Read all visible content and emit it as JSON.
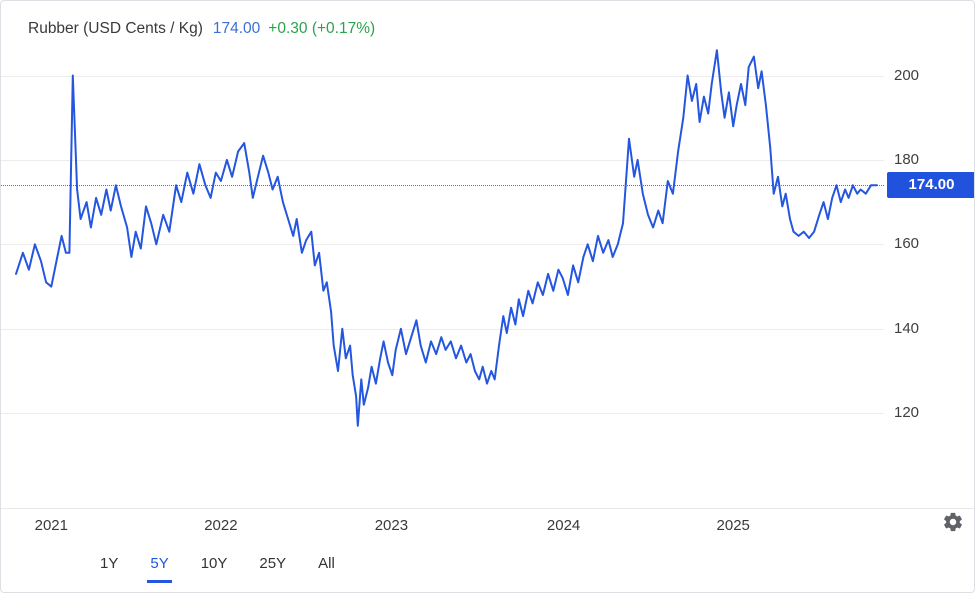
{
  "header": {
    "title": "Rubber (USD Cents / Kg)",
    "price": "174.00",
    "change": "+0.30 (+0.17%)"
  },
  "colors": {
    "accent": "#2456df",
    "badge_bg": "#2152dd",
    "price_text": "#3b6fd6",
    "change_text": "#2ba24c",
    "grid": "#ececec"
  },
  "current_price": {
    "value": 174.0,
    "label": "174.00"
  },
  "toolbar": {
    "ranges": [
      {
        "label": "1Y",
        "active": false
      },
      {
        "label": "5Y",
        "active": true
      },
      {
        "label": "10Y",
        "active": false
      },
      {
        "label": "25Y",
        "active": false
      },
      {
        "label": "All",
        "active": false
      }
    ]
  },
  "icons": {
    "settings": "gear-icon"
  },
  "chart_data": {
    "type": "line",
    "title": "Rubber (USD Cents / Kg)",
    "xlabel": "",
    "ylabel": "USD Cents / Kg",
    "ylim": [
      98,
      207
    ],
    "yticks": [
      200,
      180,
      160,
      140,
      120
    ],
    "xticks": [
      {
        "label": "2021",
        "f": 0.041
      },
      {
        "label": "2022",
        "f": 0.238
      },
      {
        "label": "2023",
        "f": 0.436
      },
      {
        "label": "2024",
        "f": 0.636
      },
      {
        "label": "2025",
        "f": 0.833
      }
    ],
    "grid": "horizontal",
    "legend": false,
    "last_value": 174.0,
    "change": "+0.30",
    "change_percent": "+0.17%",
    "series": [
      {
        "name": "Rubber",
        "points": [
          [
            0.0,
            153
          ],
          [
            0.008,
            158
          ],
          [
            0.015,
            154
          ],
          [
            0.022,
            160
          ],
          [
            0.029,
            156
          ],
          [
            0.035,
            151
          ],
          [
            0.041,
            150
          ],
          [
            0.048,
            157
          ],
          [
            0.053,
            162
          ],
          [
            0.058,
            158
          ],
          [
            0.062,
            158
          ],
          [
            0.066,
            200
          ],
          [
            0.071,
            173
          ],
          [
            0.075,
            166
          ],
          [
            0.082,
            170
          ],
          [
            0.087,
            164
          ],
          [
            0.093,
            171
          ],
          [
            0.099,
            167
          ],
          [
            0.105,
            173
          ],
          [
            0.11,
            168
          ],
          [
            0.116,
            174
          ],
          [
            0.122,
            169
          ],
          [
            0.129,
            164
          ],
          [
            0.134,
            157
          ],
          [
            0.139,
            163
          ],
          [
            0.145,
            159
          ],
          [
            0.151,
            169
          ],
          [
            0.157,
            165
          ],
          [
            0.163,
            160
          ],
          [
            0.171,
            167
          ],
          [
            0.178,
            163
          ],
          [
            0.186,
            174
          ],
          [
            0.192,
            170
          ],
          [
            0.199,
            177
          ],
          [
            0.206,
            172
          ],
          [
            0.213,
            179
          ],
          [
            0.22,
            174
          ],
          [
            0.226,
            171
          ],
          [
            0.232,
            177
          ],
          [
            0.238,
            175
          ],
          [
            0.245,
            180
          ],
          [
            0.251,
            176
          ],
          [
            0.258,
            182
          ],
          [
            0.265,
            184
          ],
          [
            0.271,
            177
          ],
          [
            0.275,
            171
          ],
          [
            0.281,
            176
          ],
          [
            0.287,
            181
          ],
          [
            0.293,
            177
          ],
          [
            0.298,
            173
          ],
          [
            0.304,
            176
          ],
          [
            0.31,
            170
          ],
          [
            0.316,
            166
          ],
          [
            0.322,
            162
          ],
          [
            0.326,
            166
          ],
          [
            0.332,
            158
          ],
          [
            0.337,
            161
          ],
          [
            0.343,
            163
          ],
          [
            0.347,
            155
          ],
          [
            0.352,
            158
          ],
          [
            0.357,
            149
          ],
          [
            0.361,
            151
          ],
          [
            0.366,
            144
          ],
          [
            0.369,
            136
          ],
          [
            0.374,
            130
          ],
          [
            0.379,
            140
          ],
          [
            0.383,
            133
          ],
          [
            0.388,
            136
          ],
          [
            0.391,
            129
          ],
          [
            0.395,
            124
          ],
          [
            0.397,
            117
          ],
          [
            0.401,
            128
          ],
          [
            0.404,
            122
          ],
          [
            0.409,
            126
          ],
          [
            0.413,
            131
          ],
          [
            0.418,
            127
          ],
          [
            0.423,
            133
          ],
          [
            0.427,
            137
          ],
          [
            0.432,
            132
          ],
          [
            0.437,
            129
          ],
          [
            0.441,
            135
          ],
          [
            0.447,
            140
          ],
          [
            0.453,
            134
          ],
          [
            0.459,
            138
          ],
          [
            0.465,
            142
          ],
          [
            0.47,
            136
          ],
          [
            0.476,
            132
          ],
          [
            0.482,
            137
          ],
          [
            0.488,
            134
          ],
          [
            0.494,
            138
          ],
          [
            0.499,
            135
          ],
          [
            0.505,
            137
          ],
          [
            0.511,
            133
          ],
          [
            0.517,
            136
          ],
          [
            0.523,
            132
          ],
          [
            0.528,
            134
          ],
          [
            0.533,
            130
          ],
          [
            0.538,
            128
          ],
          [
            0.542,
            131
          ],
          [
            0.547,
            127
          ],
          [
            0.552,
            130
          ],
          [
            0.556,
            128
          ],
          [
            0.561,
            136
          ],
          [
            0.566,
            143
          ],
          [
            0.57,
            139
          ],
          [
            0.575,
            145
          ],
          [
            0.58,
            141
          ],
          [
            0.584,
            147
          ],
          [
            0.589,
            143
          ],
          [
            0.595,
            149
          ],
          [
            0.6,
            146
          ],
          [
            0.606,
            151
          ],
          [
            0.612,
            148
          ],
          [
            0.618,
            153
          ],
          [
            0.624,
            149
          ],
          [
            0.63,
            154
          ],
          [
            0.635,
            152
          ],
          [
            0.641,
            148
          ],
          [
            0.647,
            155
          ],
          [
            0.653,
            151
          ],
          [
            0.659,
            157
          ],
          [
            0.664,
            160
          ],
          [
            0.67,
            156
          ],
          [
            0.676,
            162
          ],
          [
            0.682,
            158
          ],
          [
            0.688,
            161
          ],
          [
            0.693,
            157
          ],
          [
            0.699,
            160
          ],
          [
            0.705,
            165
          ],
          [
            0.712,
            185
          ],
          [
            0.718,
            176
          ],
          [
            0.722,
            180
          ],
          [
            0.728,
            172
          ],
          [
            0.734,
            167
          ],
          [
            0.74,
            164
          ],
          [
            0.746,
            168
          ],
          [
            0.751,
            165
          ],
          [
            0.757,
            175
          ],
          [
            0.763,
            172
          ],
          [
            0.769,
            182
          ],
          [
            0.775,
            190
          ],
          [
            0.78,
            200
          ],
          [
            0.785,
            194
          ],
          [
            0.79,
            198
          ],
          [
            0.794,
            189
          ],
          [
            0.799,
            195
          ],
          [
            0.804,
            191
          ],
          [
            0.808,
            198
          ],
          [
            0.814,
            206
          ],
          [
            0.819,
            196
          ],
          [
            0.823,
            190
          ],
          [
            0.828,
            196
          ],
          [
            0.833,
            188
          ],
          [
            0.837,
            193
          ],
          [
            0.842,
            198
          ],
          [
            0.847,
            193
          ],
          [
            0.851,
            202
          ],
          [
            0.857,
            204.5
          ],
          [
            0.862,
            197
          ],
          [
            0.866,
            201
          ],
          [
            0.871,
            193
          ],
          [
            0.876,
            183
          ],
          [
            0.88,
            172
          ],
          [
            0.885,
            176
          ],
          [
            0.89,
            169
          ],
          [
            0.894,
            172
          ],
          [
            0.899,
            166
          ],
          [
            0.903,
            163
          ],
          [
            0.909,
            162
          ],
          [
            0.915,
            163
          ],
          [
            0.921,
            161.5
          ],
          [
            0.927,
            163
          ],
          [
            0.933,
            167
          ],
          [
            0.938,
            170
          ],
          [
            0.943,
            166
          ],
          [
            0.948,
            171
          ],
          [
            0.953,
            174
          ],
          [
            0.958,
            170
          ],
          [
            0.963,
            173
          ],
          [
            0.967,
            171
          ],
          [
            0.972,
            174
          ],
          [
            0.977,
            172
          ],
          [
            0.981,
            173
          ],
          [
            0.987,
            172
          ],
          [
            0.993,
            174
          ],
          [
            1.0,
            174
          ]
        ]
      }
    ]
  }
}
